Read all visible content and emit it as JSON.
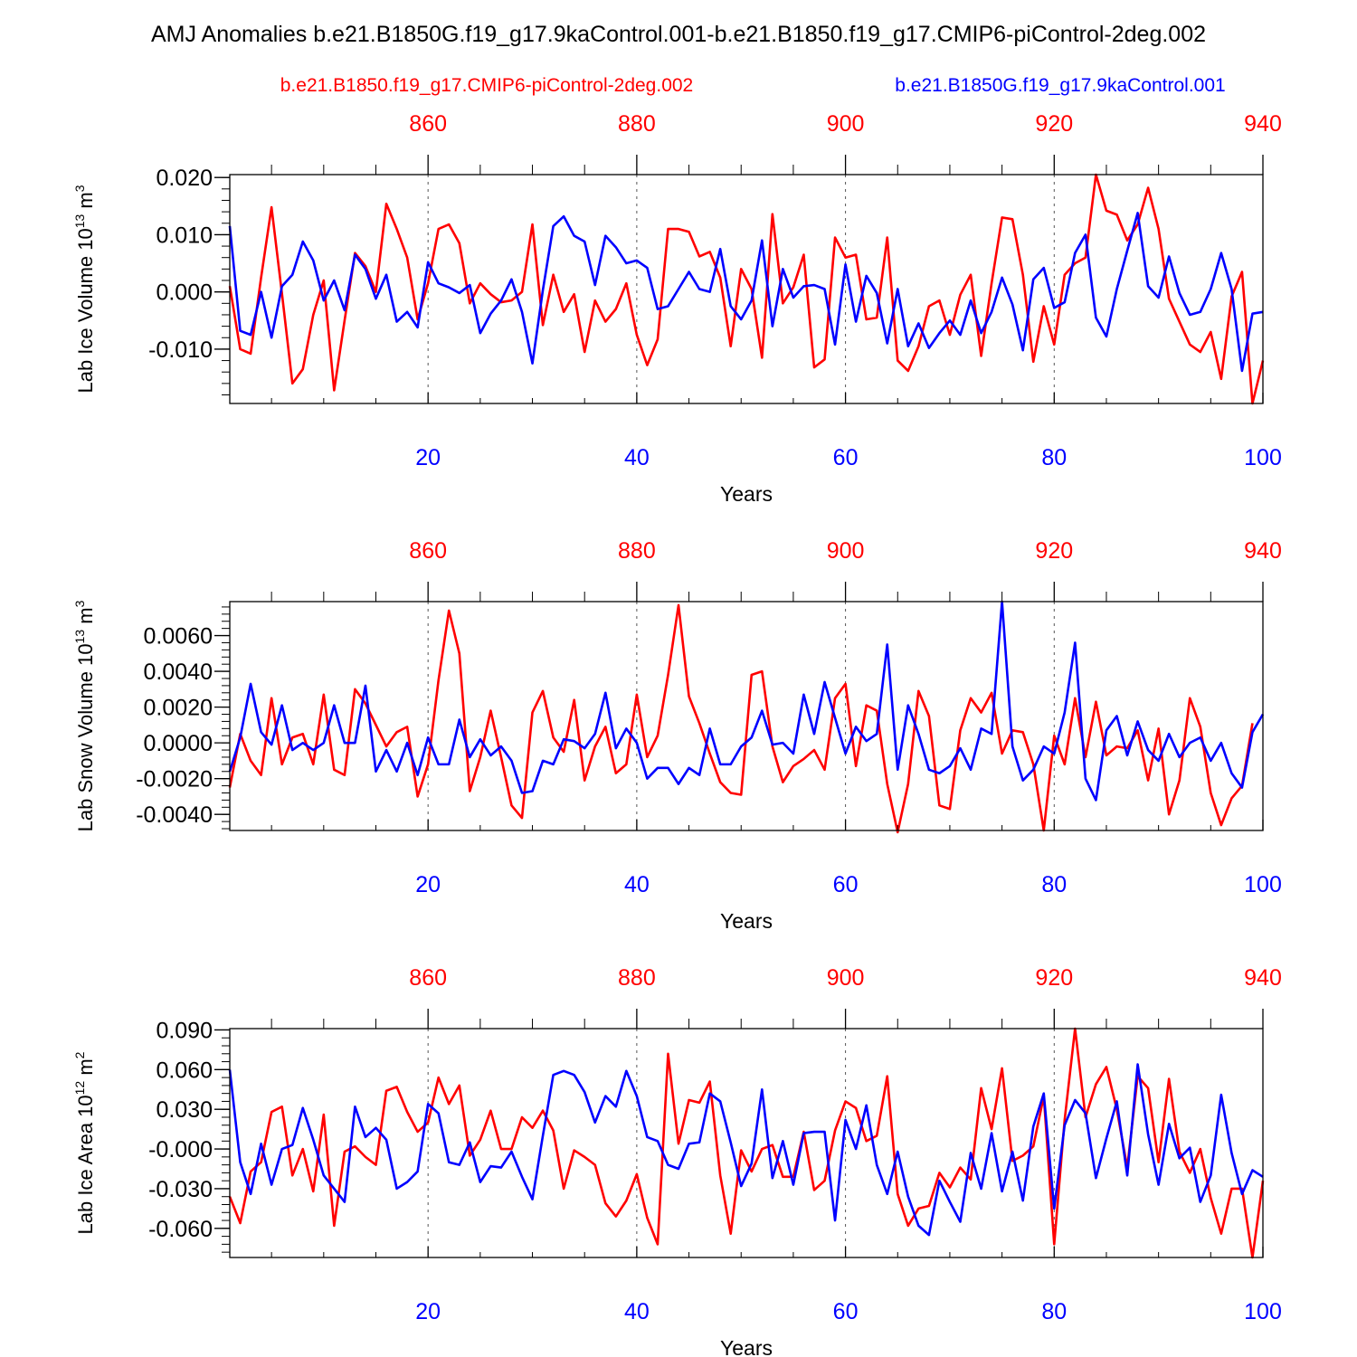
{
  "figure": {
    "title": "AMJ Anomalies b.e21.B1850G.f19_g17.9kaControl.001-b.e21.B1850.f19_g17.CMIP6-piControl-2deg.002",
    "legend": {
      "red_label": "b.e21.B1850.f19_g17.CMIP6-piControl-2deg.002",
      "blue_label": "b.e21.B1850G.f19_g17.9kaControl.001"
    },
    "colors": {
      "red": "#ff0000",
      "blue": "#0000ff",
      "axis": "#000000",
      "grid": "#555555"
    }
  },
  "chart_data": [
    {
      "type": "line",
      "title": "",
      "ylabel": {
        "main": "Lab Ice Volume 10",
        "exp": "13",
        "unit": " m",
        "unit_exp": "3"
      },
      "xlabel": "Years",
      "xlim": [
        1,
        100
      ],
      "ylim": [
        -0.0195,
        0.0205
      ],
      "x_ticks": [
        20,
        40,
        60,
        80,
        100
      ],
      "x_tick_labels": [
        "20",
        "40",
        "60",
        "80",
        "100"
      ],
      "top_ticks": [
        860,
        880,
        900,
        920,
        940
      ],
      "top_tick_labels": [
        "860",
        "880",
        "900",
        "920",
        "940"
      ],
      "top_offset_years": 840,
      "y_ticks": [
        0.02,
        0.01,
        0.0,
        -0.01
      ],
      "y_tick_labels": [
        "0.020",
        "0.010",
        "0.000",
        "-0.010"
      ],
      "y_minor_step": 0.002,
      "grid_x": [
        20,
        40,
        60,
        80
      ],
      "series": [
        {
          "name": "b.e21.B1850.f19_g17.CMIP6-piControl-2deg.002",
          "color": "red",
          "values": [
            0.001,
            -0.01,
            -0.0108,
            0.0025,
            0.0148,
            -0.0003,
            -0.016,
            -0.0135,
            -0.004,
            0.002,
            -0.0172,
            -0.005,
            0.0068,
            0.0045,
            0.0,
            0.0154,
            0.011,
            0.006,
            -0.0048,
            0.0015,
            0.011,
            0.0118,
            0.0085,
            -0.002,
            0.0015,
            -0.0004,
            -0.0018,
            -0.0015,
            0.0,
            0.0118,
            -0.0058,
            0.003,
            -0.0035,
            -0.0004,
            -0.0105,
            -0.0015,
            -0.0052,
            -0.003,
            0.0015,
            -0.0075,
            -0.0128,
            -0.0083,
            0.011,
            0.011,
            0.0105,
            0.0062,
            0.007,
            0.0025,
            -0.0095,
            0.004,
            0.0005,
            -0.0115,
            0.0136,
            -0.002,
            0.0008,
            0.0065,
            -0.0132,
            -0.0118,
            0.0095,
            0.006,
            0.0065,
            -0.0048,
            -0.0045,
            0.0095,
            -0.012,
            -0.0138,
            -0.0095,
            -0.0025,
            -0.0015,
            -0.0075,
            -0.0005,
            0.003,
            -0.0112,
            0.0015,
            0.013,
            0.0127,
            0.003,
            -0.0122,
            -0.0025,
            -0.0092,
            0.003,
            0.005,
            0.006,
            0.0205,
            0.0142,
            0.0135,
            0.009,
            0.0118,
            0.0182,
            0.011,
            -0.0012,
            -0.0052,
            -0.0092,
            -0.0105,
            -0.007,
            -0.0152,
            -0.0008,
            0.0035,
            -0.0195,
            -0.012
          ]
        },
        {
          "name": "b.e21.B1850G.f19_g17.9kaControl.001",
          "color": "blue",
          "values": [
            0.0115,
            -0.0068,
            -0.0075,
            0.0,
            -0.008,
            0.001,
            0.003,
            0.0088,
            0.0055,
            -0.0015,
            0.002,
            -0.0032,
            0.0065,
            0.004,
            -0.0012,
            0.003,
            -0.0052,
            -0.0035,
            -0.0062,
            0.0052,
            0.0015,
            0.0008,
            -0.0002,
            0.0012,
            -0.0072,
            -0.0038,
            -0.0015,
            0.0022,
            -0.0035,
            -0.0125,
            0.0003,
            0.0115,
            0.0132,
            0.0098,
            0.0088,
            0.0012,
            0.0098,
            0.0078,
            0.005,
            0.0055,
            0.0042,
            -0.003,
            -0.0025,
            0.0005,
            0.0035,
            0.0005,
            0.0,
            0.0075,
            -0.0025,
            -0.0048,
            -0.0015,
            0.009,
            -0.006,
            0.004,
            -0.001,
            0.001,
            0.0012,
            0.0005,
            -0.0092,
            0.0048,
            -0.0052,
            0.0028,
            -0.0002,
            -0.009,
            0.0005,
            -0.0095,
            -0.0055,
            -0.0098,
            -0.0072,
            -0.005,
            -0.0075,
            -0.0015,
            -0.0072,
            -0.0035,
            0.0025,
            -0.0022,
            -0.0102,
            0.0022,
            0.0042,
            -0.0028,
            -0.0018,
            0.0068,
            0.01,
            -0.0045,
            -0.0078,
            0.0005,
            0.0072,
            0.0138,
            0.001,
            -0.001,
            0.0062,
            -0.0002,
            -0.004,
            -0.0035,
            0.0005,
            0.0068,
            0.0005,
            -0.0138,
            -0.0038,
            -0.0035
          ]
        }
      ]
    },
    {
      "type": "line",
      "title": "",
      "ylabel": {
        "main": "Lab Snow Volume 10",
        "exp": "13",
        "unit": " m",
        "unit_exp": "3"
      },
      "xlabel": "Years",
      "xlim": [
        1,
        100
      ],
      "ylim": [
        -0.0049,
        0.0079
      ],
      "x_ticks": [
        20,
        40,
        60,
        80,
        100
      ],
      "x_tick_labels": [
        "20",
        "40",
        "60",
        "80",
        "100"
      ],
      "top_ticks": [
        860,
        880,
        900,
        920,
        940
      ],
      "top_tick_labels": [
        "860",
        "880",
        "900",
        "920",
        "940"
      ],
      "top_offset_years": 840,
      "y_ticks": [
        0.006,
        0.004,
        0.002,
        0.0,
        -0.002,
        -0.004
      ],
      "y_tick_labels": [
        "0.0060",
        "0.0040",
        "0.0020",
        "0.0000",
        "-0.0020",
        "-0.0040"
      ],
      "y_minor_step": 0.0004,
      "grid_x": [
        20,
        40,
        60,
        80
      ],
      "series": [
        {
          "name": "b.e21.B1850.f19_g17.CMIP6-piControl-2deg.002",
          "color": "red",
          "values": [
            -0.0025,
            0.0005,
            -0.001,
            -0.0018,
            0.0025,
            -0.0012,
            0.0003,
            0.0005,
            -0.0012,
            0.0027,
            -0.0015,
            -0.0018,
            0.003,
            0.0022,
            0.001,
            -0.0002,
            0.0006,
            0.0009,
            -0.003,
            -0.0012,
            0.0035,
            0.0074,
            0.005,
            -0.0027,
            -0.0008,
            0.0018,
            -0.0008,
            -0.0035,
            -0.0042,
            0.0017,
            0.0029,
            0.0003,
            -0.0005,
            0.0024,
            -0.0021,
            -0.0002,
            0.0009,
            -0.0017,
            -0.0012,
            0.0027,
            -0.0008,
            0.0004,
            0.0038,
            0.0077,
            0.0026,
            0.0011,
            -0.0006,
            -0.0022,
            -0.0028,
            -0.0029,
            0.0038,
            0.004,
            -0.0002,
            -0.0022,
            -0.0013,
            -0.0009,
            -0.0004,
            -0.0015,
            0.0025,
            0.0033,
            -0.0013,
            0.0021,
            0.0018,
            -0.0023,
            -0.005,
            -0.0023,
            0.0029,
            0.0015,
            -0.0035,
            -0.0037,
            0.0007,
            0.0025,
            0.0017,
            0.0028,
            -0.0006,
            0.0007,
            0.0006,
            -0.0012,
            -0.0049,
            0.0004,
            -0.0012,
            0.0025,
            -0.0008,
            0.0023,
            -0.0007,
            -0.0002,
            -0.0003,
            0.0007,
            -0.0021,
            0.0008,
            -0.004,
            -0.0021,
            0.0025,
            0.0009,
            -0.0028,
            -0.0046,
            -0.0031,
            -0.0024,
            0.0011
          ]
        },
        {
          "name": "b.e21.B1850G.f19_g17.9kaControl.001",
          "color": "blue",
          "values": [
            -0.0016,
            0.0003,
            0.0033,
            0.0006,
            -0.0001,
            0.0021,
            -0.0004,
            0.0,
            -0.0004,
            0.0,
            0.0021,
            0.0,
            0.0,
            0.0032,
            -0.0016,
            -0.0004,
            -0.0016,
            0.0,
            -0.0018,
            0.0003,
            -0.0012,
            -0.0012,
            0.0013,
            -0.0008,
            0.0002,
            -0.0007,
            -0.0002,
            -0.001,
            -0.0028,
            -0.0027,
            -0.001,
            -0.0012,
            0.0002,
            0.0001,
            -0.0003,
            0.0005,
            0.0028,
            -0.0003,
            0.0008,
            0.0,
            -0.002,
            -0.0014,
            -0.0014,
            -0.0023,
            -0.0014,
            -0.0018,
            0.0008,
            -0.0012,
            -0.0012,
            -0.0002,
            0.0003,
            0.0018,
            -0.0001,
            0.0,
            -0.0006,
            0.0027,
            0.0005,
            0.0034,
            0.0014,
            -0.0006,
            0.0009,
            0.0001,
            0.0005,
            0.0055,
            -0.0015,
            0.0021,
            0.0005,
            -0.0015,
            -0.0017,
            -0.0013,
            -0.0003,
            -0.0015,
            0.0008,
            0.0005,
            0.0079,
            -0.0002,
            -0.0021,
            -0.0015,
            -0.0002,
            -0.0006,
            0.0017,
            0.0056,
            -0.002,
            -0.0032,
            0.0007,
            0.0015,
            -0.0007,
            0.0012,
            -0.0004,
            -0.001,
            0.0005,
            -0.0008,
            0.0,
            0.0003,
            -0.001,
            0.0,
            -0.0017,
            -0.0025,
            0.0006,
            0.0016
          ]
        }
      ]
    },
    {
      "type": "line",
      "title": "",
      "ylabel": {
        "main": "Lab Ice Area 10",
        "exp": "12",
        "unit": " m",
        "unit_exp": "2"
      },
      "xlabel": "Years",
      "xlim": [
        1,
        100
      ],
      "ylim": [
        -0.082,
        0.091
      ],
      "x_ticks": [
        20,
        40,
        60,
        80,
        100
      ],
      "x_tick_labels": [
        "20",
        "40",
        "60",
        "80",
        "100"
      ],
      "top_ticks": [
        860,
        880,
        900,
        920,
        940
      ],
      "top_tick_labels": [
        "860",
        "880",
        "900",
        "920",
        "940"
      ],
      "top_offset_years": 840,
      "y_ticks": [
        0.09,
        0.06,
        0.03,
        0.0,
        -0.03,
        -0.06
      ],
      "y_tick_labels": [
        "0.090",
        "0.060",
        "0.030",
        "-0.000",
        "-0.030",
        "-0.060"
      ],
      "y_minor_step": 0.006,
      "grid_x": [
        20,
        40,
        60,
        80
      ],
      "series": [
        {
          "name": "b.e21.B1850.f19_g17.CMIP6-piControl-2deg.002",
          "color": "red",
          "values": [
            -0.036,
            -0.056,
            -0.017,
            -0.01,
            0.028,
            0.032,
            -0.02,
            0.0,
            -0.032,
            0.026,
            -0.058,
            -0.002,
            0.002,
            -0.006,
            -0.012,
            0.044,
            0.047,
            0.028,
            0.013,
            0.02,
            0.054,
            0.034,
            0.048,
            -0.005,
            0.007,
            0.029,
            0.0,
            0.0,
            0.024,
            0.016,
            0.029,
            0.014,
            -0.03,
            -0.001,
            -0.006,
            -0.012,
            -0.041,
            -0.051,
            -0.039,
            -0.019,
            -0.052,
            -0.072,
            0.072,
            0.004,
            0.037,
            0.035,
            0.051,
            -0.02,
            -0.064,
            -0.001,
            -0.017,
            0.0,
            0.003,
            -0.021,
            -0.021,
            0.013,
            -0.031,
            -0.024,
            0.014,
            0.036,
            0.031,
            0.006,
            0.01,
            0.055,
            -0.034,
            -0.058,
            -0.045,
            -0.043,
            -0.018,
            -0.029,
            -0.014,
            -0.023,
            0.046,
            0.015,
            0.061,
            -0.009,
            -0.005,
            0.002,
            0.04,
            -0.072,
            0.022,
            0.091,
            0.024,
            0.049,
            0.062,
            0.03,
            -0.014,
            0.055,
            0.046,
            -0.01,
            0.053,
            -0.002,
            -0.018,
            0.0,
            -0.037,
            -0.064,
            -0.03,
            -0.03,
            -0.082,
            -0.024
          ]
        },
        {
          "name": "b.e21.B1850G.f19_g17.9kaControl.001",
          "color": "blue",
          "values": [
            0.06,
            -0.01,
            -0.034,
            0.004,
            -0.027,
            0.0,
            0.003,
            0.031,
            0.007,
            -0.02,
            -0.03,
            -0.04,
            0.032,
            0.009,
            0.016,
            0.007,
            -0.03,
            -0.025,
            -0.017,
            0.034,
            0.027,
            -0.01,
            -0.012,
            0.005,
            -0.025,
            -0.013,
            -0.014,
            -0.002,
            -0.021,
            -0.038,
            0.01,
            0.056,
            0.059,
            0.056,
            0.043,
            0.02,
            0.04,
            0.032,
            0.059,
            0.04,
            0.009,
            0.006,
            -0.012,
            -0.015,
            0.004,
            0.005,
            0.042,
            0.036,
            0.005,
            -0.028,
            -0.011,
            0.045,
            -0.022,
            0.006,
            -0.027,
            0.012,
            0.013,
            0.013,
            -0.054,
            0.022,
            0.0,
            0.033,
            -0.012,
            -0.034,
            -0.002,
            -0.036,
            -0.058,
            -0.065,
            -0.024,
            -0.04,
            -0.055,
            -0.003,
            -0.03,
            0.012,
            -0.032,
            -0.002,
            -0.039,
            0.017,
            0.042,
            -0.045,
            0.018,
            0.037,
            0.027,
            -0.022,
            0.008,
            0.036,
            -0.02,
            0.064,
            0.011,
            -0.027,
            0.019,
            -0.007,
            0.001,
            -0.04,
            -0.02,
            0.041,
            -0.003,
            -0.034,
            -0.016,
            -0.021
          ]
        }
      ]
    }
  ]
}
